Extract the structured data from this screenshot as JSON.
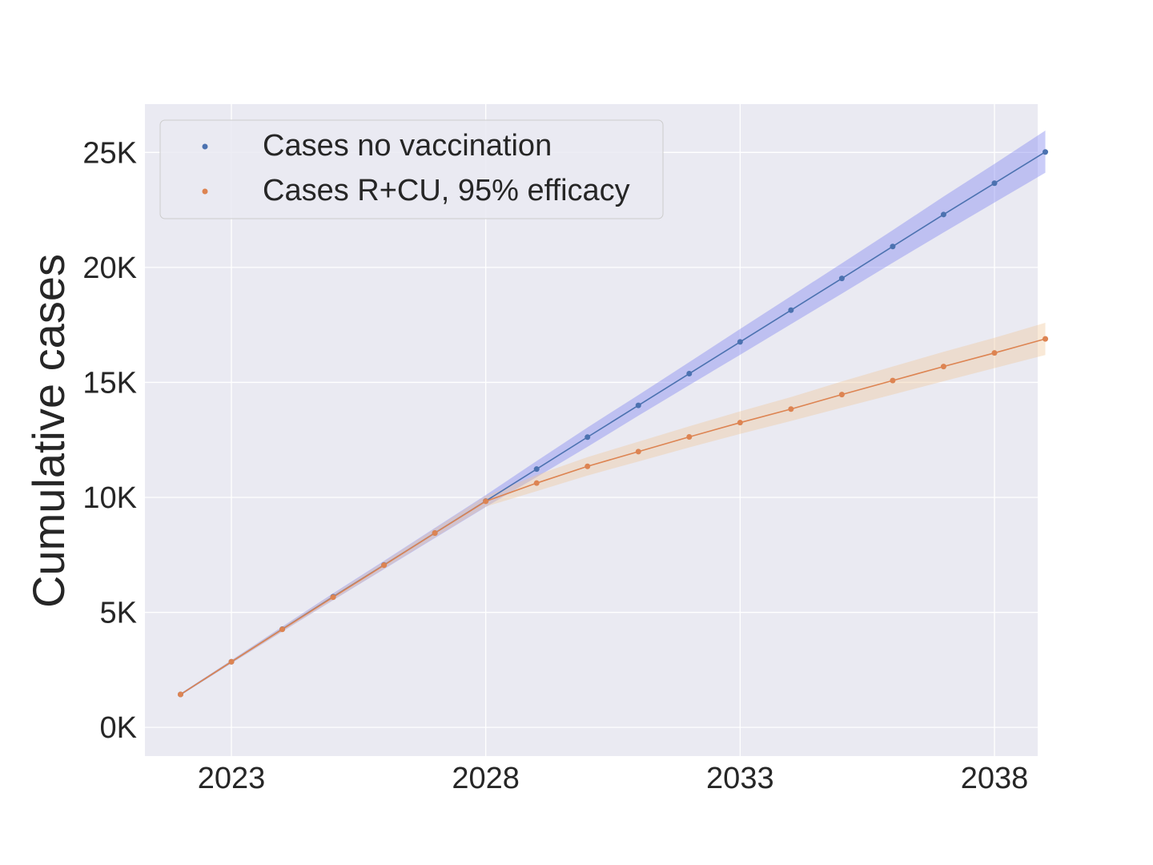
{
  "chart_data": {
    "type": "line",
    "title": "",
    "xlabel": "",
    "ylabel": "Cumulative cases",
    "xlim": [
      2021.3,
      2038.85
    ],
    "ylim": [
      -1250,
      27100
    ],
    "x_ticks": [
      2023,
      2028,
      2033,
      2038
    ],
    "x_tick_labels": [
      "2023",
      "2028",
      "2033",
      "2038"
    ],
    "y_ticks": [
      0,
      5000,
      10000,
      15000,
      20000,
      25000
    ],
    "y_tick_labels": [
      "0K",
      "5K",
      "10K",
      "15K",
      "20K",
      "25K"
    ],
    "grid": true,
    "legend_position": "top-left",
    "x": [
      2022,
      2023,
      2024,
      2025,
      2026,
      2027,
      2028,
      2029,
      2030,
      2031,
      2032,
      2033,
      2034,
      2035,
      2036,
      2037,
      2038,
      2039
    ],
    "series": [
      {
        "name": "Cases no vaccination",
        "color": "#4c72b0",
        "band_color": "#8a8ff0",
        "values": [
          1430,
          2850,
          4270,
          5680,
          7060,
          8450,
          9840,
          11230,
          12620,
          14000,
          15380,
          16760,
          18140,
          19520,
          20910,
          22300,
          23660,
          25020
        ],
        "lower": [
          1390,
          2780,
          4160,
          5530,
          6880,
          8230,
          9580,
          10880,
          12200,
          13550,
          14880,
          16200,
          17530,
          18860,
          20200,
          21520,
          22820,
          24120
        ],
        "upper": [
          1470,
          2920,
          4380,
          5830,
          7240,
          8670,
          10100,
          11580,
          13040,
          14450,
          15880,
          17320,
          18750,
          20180,
          21620,
          23080,
          24500,
          25950
        ]
      },
      {
        "name": "Cases R+CU, 95% efficacy",
        "color": "#dd8452",
        "band_color": "#f0c99a",
        "values": [
          1430,
          2850,
          4260,
          5660,
          7050,
          8450,
          9830,
          10620,
          11350,
          11990,
          12630,
          13250,
          13840,
          14470,
          15080,
          15690,
          16280,
          16890
        ],
        "lower": [
          1400,
          2790,
          4170,
          5540,
          6900,
          8260,
          9600,
          10270,
          10950,
          11560,
          12170,
          12760,
          13320,
          13900,
          14470,
          15050,
          15620,
          16190
        ],
        "upper": [
          1460,
          2910,
          4350,
          5780,
          7200,
          8640,
          10060,
          10970,
          11750,
          12420,
          13090,
          13740,
          14360,
          15040,
          15690,
          16330,
          16940,
          17590
        ]
      }
    ]
  }
}
